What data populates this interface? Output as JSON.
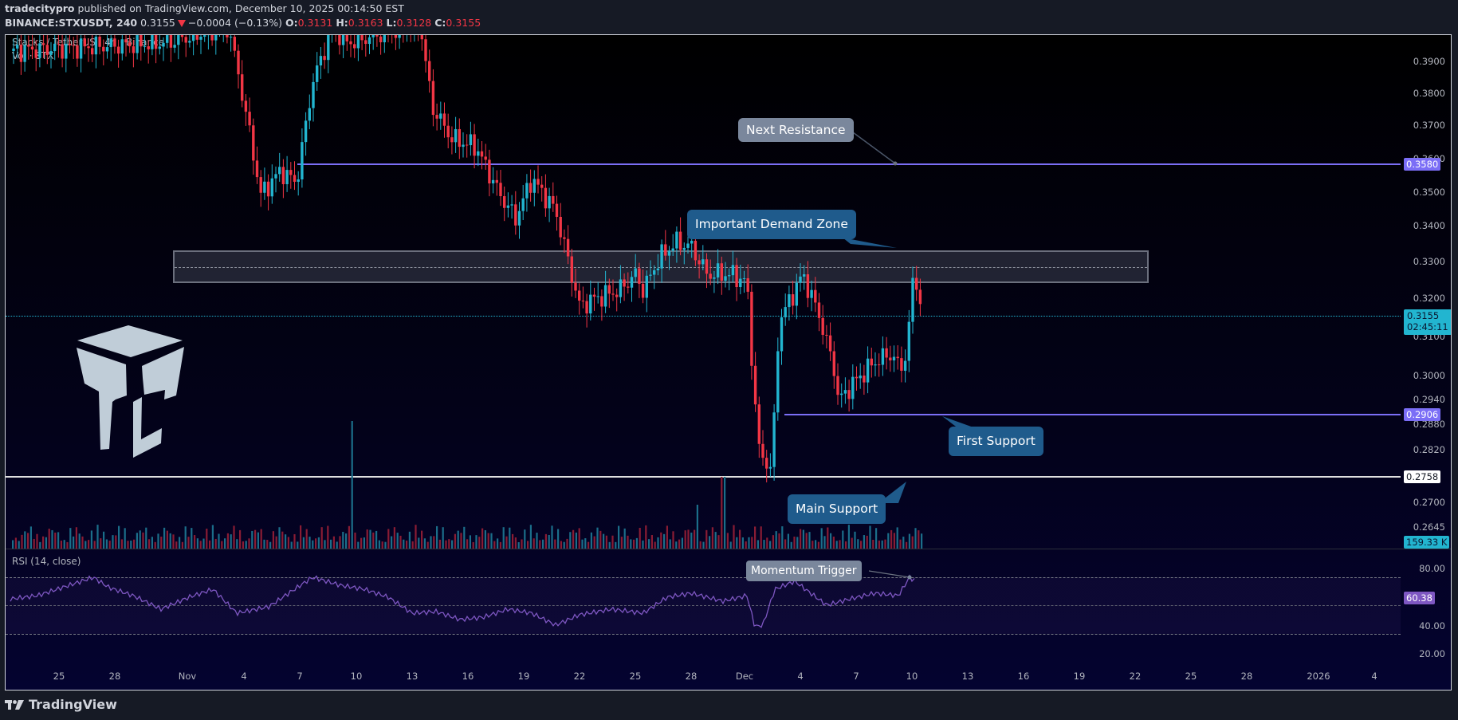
{
  "header": {
    "author": "tradecitypro",
    "published_text": "published on TradingView.com, December 10, 2025 00:14:50 EST",
    "symbol": "BINANCE:STXUSDT, 240",
    "last": "0.3155",
    "change": "−0.0004 (−0.13%)",
    "ohlc": {
      "o_label": "O:",
      "o": "0.3131",
      "h_label": "H:",
      "h": "0.3163",
      "l_label": "L:",
      "l": "0.3128",
      "c_label": "C:",
      "c": "0.3155"
    }
  },
  "chart": {
    "legend_title": "Stacks / TetherUS · 4h · Binance",
    "legend_vol": "Vol · STX",
    "price_axis": [
      "0.3900",
      "0.3800",
      "0.3700",
      "0.3600",
      "0.3500",
      "0.3400",
      "0.3300",
      "0.3200",
      "0.3100",
      "0.3000",
      "0.2940",
      "0.2880",
      "0.2820",
      "0.2700",
      "0.2645"
    ],
    "tags": {
      "resistance": "0.3580",
      "current_price": "0.3155",
      "countdown": "02:45:11",
      "first_support": "0.2906",
      "main_support": "0.2758",
      "volume": "159.33 K"
    },
    "callouts": {
      "next_resistance": "Next Resistance",
      "demand_zone": "Important Demand Zone",
      "first_support": "First Support",
      "main_support": "Main Support",
      "momentum_trigger": "Momentum Trigger"
    },
    "colors": {
      "up": "#22b5d0",
      "down": "#f23645",
      "resistance": "#7b6ef6",
      "support_main": "#e0e0e0",
      "callout_blue": "#1f5b8c",
      "callout_gray": "#7a879c",
      "rsi": "#7e57c2"
    }
  },
  "rsi": {
    "legend": "RSI (14, close)",
    "axis": [
      "80.00",
      "40.00",
      "20.00"
    ],
    "value": "60.38"
  },
  "time_axis": [
    "25",
    "28",
    "Nov",
    "4",
    "7",
    "10",
    "13",
    "16",
    "19",
    "22",
    "25",
    "28",
    "Dec",
    "4",
    "7",
    "10",
    "13",
    "16",
    "19",
    "22",
    "25",
    "28",
    "2026",
    "4"
  ],
  "footer": {
    "brand": "TradingView"
  }
}
